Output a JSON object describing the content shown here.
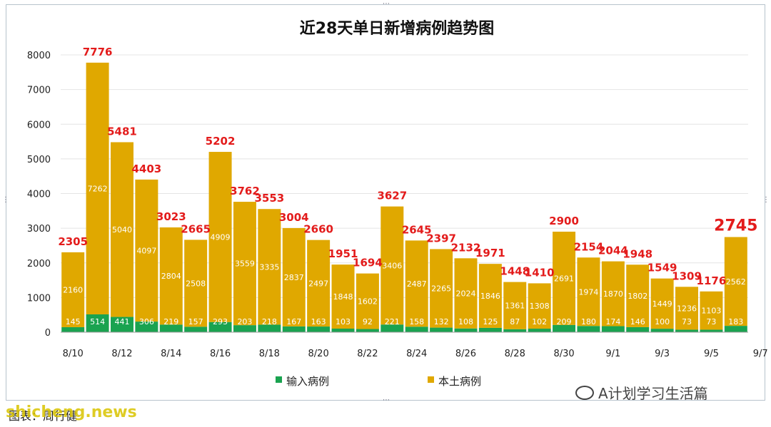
{
  "chart_data": {
    "type": "bar",
    "stacked": true,
    "title": "近28天单日新增病例趋势图",
    "categories": [
      "8/10",
      "8/11",
      "8/12",
      "8/13",
      "8/14",
      "8/15",
      "8/16",
      "8/17",
      "8/18",
      "8/19",
      "8/20",
      "8/21",
      "8/22",
      "8/23",
      "8/24",
      "8/25",
      "8/26",
      "8/27",
      "8/28",
      "8/29",
      "8/30",
      "8/31",
      "9/1",
      "9/2",
      "9/3",
      "9/4",
      "9/5",
      "9/6"
    ],
    "x_tick_labels": [
      "8/10",
      "",
      "8/12",
      "",
      "8/14",
      "",
      "8/16",
      "",
      "8/18",
      "",
      "8/20",
      "",
      "8/22",
      "",
      "8/24",
      "",
      "8/26",
      "",
      "8/28",
      "",
      "8/30",
      "",
      "9/1",
      "",
      "9/3",
      "",
      "9/5",
      "",
      "9/7"
    ],
    "series": [
      {
        "name": "输入病例",
        "color": "#1aa350",
        "values": [
          145,
          514,
          441,
          306,
          219,
          157,
          293,
          203,
          218,
          167,
          163,
          103,
          92,
          221,
          158,
          132,
          108,
          125,
          87,
          102,
          209,
          180,
          174,
          146,
          100,
          73,
          73,
          183
        ]
      },
      {
        "name": "本土病例",
        "color": "#e0a800",
        "values": [
          2160,
          7262,
          5040,
          4097,
          2804,
          2508,
          4909,
          3559,
          3335,
          2837,
          2497,
          1848,
          1602,
          3406,
          2487,
          2265,
          2024,
          1846,
          1361,
          1308,
          2691,
          1974,
          1870,
          1802,
          1449,
          1236,
          1103,
          2562
        ]
      }
    ],
    "totals": [
      2305,
      7776,
      5481,
      4403,
      3023,
      2665,
      5202,
      3762,
      3553,
      3004,
      2660,
      1951,
      1694,
      3627,
      2645,
      2397,
      2132,
      1971,
      1448,
      1410,
      2900,
      2154,
      2044,
      1948,
      1549,
      1309,
      1176,
      2745
    ],
    "ylim": [
      0,
      8000
    ],
    "y_ticks": [
      0,
      1000,
      2000,
      3000,
      4000,
      5000,
      6000,
      7000,
      8000
    ],
    "grid": true,
    "legend_position": "bottom"
  },
  "footer_text": "图表：周行健",
  "watermark_text": "shicheng.news",
  "wechat_text": "A计划学习生活篇"
}
